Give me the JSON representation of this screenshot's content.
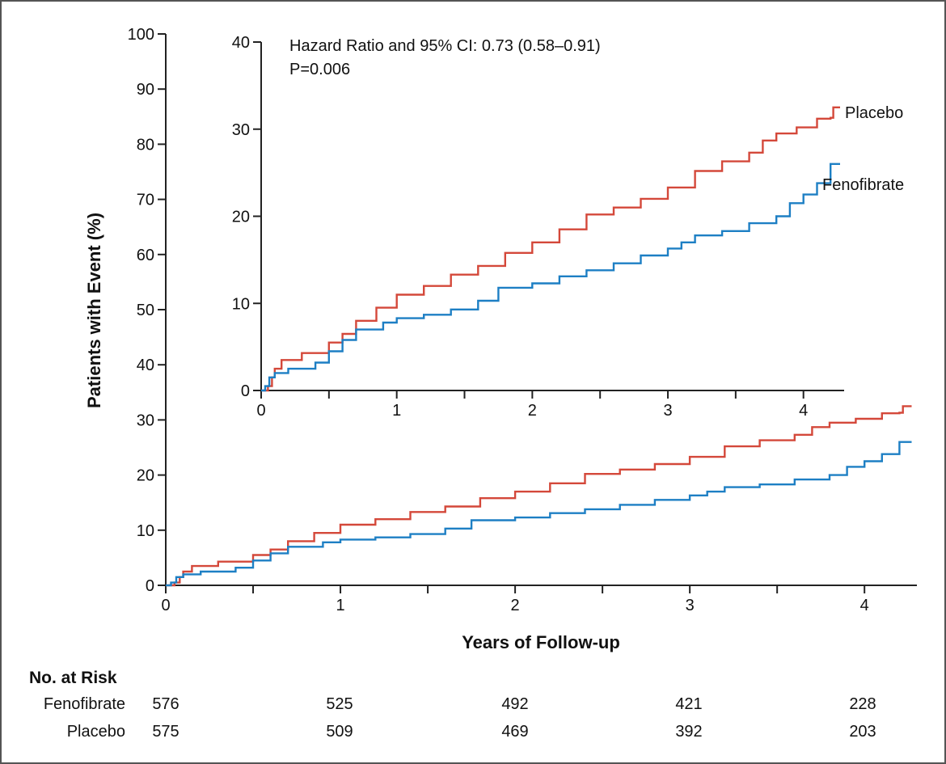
{
  "colors": {
    "placebo": "#d4483a",
    "fenofibrate": "#1d7fc4",
    "axis": "#222222"
  },
  "chart_data": [
    {
      "type": "line",
      "name": "main",
      "xlabel": "Years of Follow-up",
      "ylabel": "Patients with Event (%)",
      "xlim": [
        0,
        4.3
      ],
      "ylim": [
        0,
        100
      ],
      "xticks": [
        0,
        1,
        2,
        3,
        4
      ],
      "yticks": [
        0,
        10,
        20,
        30,
        40,
        50,
        60,
        70,
        80,
        90,
        100
      ],
      "xtick_labels": [
        "0",
        "1",
        "2",
        "3",
        "4"
      ],
      "ytick_labels": [
        "0",
        "10",
        "20",
        "30",
        "40",
        "50",
        "60",
        "70",
        "80",
        "90",
        "100"
      ],
      "series": [
        {
          "name": "Placebo",
          "color": "#d4483a",
          "points": [
            [
              0,
              0
            ],
            [
              0.05,
              0.5
            ],
            [
              0.08,
              1.5
            ],
            [
              0.1,
              2.5
            ],
            [
              0.15,
              3.5
            ],
            [
              0.3,
              4.3
            ],
            [
              0.5,
              5.5
            ],
            [
              0.6,
              6.5
            ],
            [
              0.7,
              8
            ],
            [
              0.85,
              9.5
            ],
            [
              1,
              11
            ],
            [
              1.2,
              12
            ],
            [
              1.4,
              13.3
            ],
            [
              1.6,
              14.3
            ],
            [
              1.8,
              15.8
            ],
            [
              2,
              17
            ],
            [
              2.2,
              18.5
            ],
            [
              2.4,
              20.2
            ],
            [
              2.6,
              21
            ],
            [
              2.8,
              22
            ],
            [
              3,
              23.3
            ],
            [
              3.2,
              25.2
            ],
            [
              3.4,
              26.3
            ],
            [
              3.6,
              27.3
            ],
            [
              3.7,
              28.7
            ],
            [
              3.8,
              29.5
            ],
            [
              3.95,
              30.2
            ],
            [
              4.1,
              31.2
            ],
            [
              4.2,
              31.3
            ],
            [
              4.22,
              32.5
            ],
            [
              4.27,
              32.5
            ]
          ]
        },
        {
          "name": "Fenofibrate",
          "color": "#1d7fc4",
          "points": [
            [
              0,
              0
            ],
            [
              0.03,
              0.5
            ],
            [
              0.06,
              1.5
            ],
            [
              0.1,
              2
            ],
            [
              0.2,
              2.5
            ],
            [
              0.4,
              3.2
            ],
            [
              0.5,
              4.5
            ],
            [
              0.6,
              5.8
            ],
            [
              0.7,
              7
            ],
            [
              0.9,
              7.8
            ],
            [
              1,
              8.3
            ],
            [
              1.2,
              8.7
            ],
            [
              1.4,
              9.3
            ],
            [
              1.6,
              10.3
            ],
            [
              1.75,
              11.8
            ],
            [
              2,
              12.3
            ],
            [
              2.2,
              13.1
            ],
            [
              2.4,
              13.8
            ],
            [
              2.6,
              14.6
            ],
            [
              2.8,
              15.5
            ],
            [
              3,
              16.3
            ],
            [
              3.1,
              17
            ],
            [
              3.2,
              17.8
            ],
            [
              3.4,
              18.3
            ],
            [
              3.6,
              19.2
            ],
            [
              3.8,
              20
            ],
            [
              3.9,
              21.5
            ],
            [
              4,
              22.5
            ],
            [
              4.1,
              23.8
            ],
            [
              4.2,
              26
            ],
            [
              4.27,
              26
            ]
          ]
        }
      ]
    },
    {
      "type": "line",
      "name": "inset",
      "xlim": [
        0,
        4.3
      ],
      "ylim": [
        0,
        40
      ],
      "xticks": [
        0,
        1,
        2,
        3,
        4
      ],
      "yticks": [
        0,
        10,
        20,
        30,
        40
      ],
      "xtick_labels": [
        "0",
        "1",
        "2",
        "3",
        "4"
      ],
      "ytick_labels": [
        "0",
        "10",
        "20",
        "30",
        "40"
      ],
      "annotation_lines": [
        "Hazard Ratio and 95% CI: 0.73 (0.58–0.91)",
        "P=0.006"
      ],
      "series_labels": [
        "Placebo",
        "Fenofibrate"
      ]
    }
  ],
  "risk_table": {
    "title": "No. at Risk",
    "rows": [
      {
        "label": "Fenofibrate",
        "values": [
          "576",
          "525",
          "492",
          "421",
          "228"
        ]
      },
      {
        "label": "Placebo",
        "values": [
          "575",
          "509",
          "469",
          "392",
          "203"
        ]
      }
    ]
  }
}
